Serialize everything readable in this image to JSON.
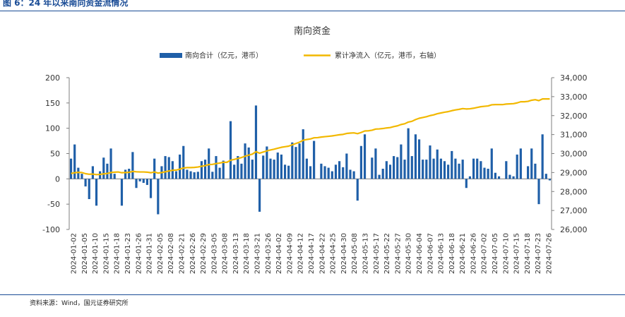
{
  "figure_label": "图 6：24 年以来南向资金流情况",
  "source_note": "资料来源：Wind，国元证券研究所",
  "colors": {
    "bar": "#1f5fa8",
    "line": "#f2b800",
    "header": "#1a4c96",
    "axis": "#7f7f7f",
    "text": "#333333"
  },
  "chart_data": {
    "type": "bar+line",
    "title": "南向资金",
    "legend": [
      "南向合计（亿元，港币）",
      "累计净流入（亿元，港币，右轴）"
    ],
    "left_axis": {
      "min": -100,
      "max": 200,
      "ticks": [
        "200",
        "150",
        "100",
        "50",
        "0",
        "-50",
        "-100"
      ]
    },
    "right_axis": {
      "min": 26000,
      "max": 34000,
      "ticks": [
        "34,000",
        "33,000",
        "32,000",
        "31,000",
        "30,000",
        "29,000",
        "28,000",
        "27,000",
        "26,000"
      ]
    },
    "x_ticks": [
      "2024-01-02",
      "2024-01-05",
      "2024-01-10",
      "2024-01-15",
      "2024-01-18",
      "2024-01-23",
      "2024-01-26",
      "2024-01-31",
      "2024-02-05",
      "2024-02-08",
      "2024-02-21",
      "2024-02-26",
      "2024-02-29",
      "2024-03-05",
      "2024-03-08",
      "2024-03-13",
      "2024-03-18",
      "2024-03-21",
      "2024-03-26",
      "2024-04-02",
      "2024-04-09",
      "2024-04-12",
      "2024-04-17",
      "2024-04-22",
      "2024-04-25",
      "2024-04-30",
      "2024-05-08",
      "2024-05-13",
      "2024-05-17",
      "2024-05-22",
      "2024-05-27",
      "2024-05-30",
      "2024-06-04",
      "2024-06-07",
      "2024-06-13",
      "2024-06-18",
      "2024-06-21",
      "2024-06-26",
      "2024-07-02",
      "2024-07-05",
      "2024-07-10",
      "2024-07-15",
      "2024-07-18",
      "2024-07-23",
      "2024-07-26"
    ],
    "series": [
      {
        "name": "南向合计（亿元，港币）",
        "type": "bar",
        "values": [
          40,
          68,
          22,
          10,
          -15,
          -40,
          25,
          -53,
          15,
          42,
          30,
          60,
          10,
          0,
          -53,
          18,
          20,
          53,
          -18,
          -5,
          -8,
          -12,
          -38,
          40,
          -70,
          25,
          45,
          43,
          35,
          15,
          48,
          65,
          18,
          15,
          13,
          14,
          35,
          38,
          60,
          14,
          45,
          22,
          36,
          0,
          114,
          28,
          45,
          30,
          70,
          62,
          38,
          145,
          -65,
          46,
          64,
          40,
          38,
          52,
          48,
          28,
          26,
          72,
          63,
          70,
          98,
          40,
          25,
          75,
          0,
          30,
          25,
          22,
          15,
          28,
          35,
          23,
          50,
          18,
          15,
          -43,
          65,
          88,
          0,
          42,
          60,
          8,
          20,
          35,
          28,
          45,
          43,
          68,
          38,
          100,
          45,
          88,
          78,
          38,
          38,
          66,
          40,
          58,
          40,
          35,
          28,
          55,
          40,
          30,
          38,
          -18,
          5,
          40,
          40,
          35,
          22,
          20,
          60,
          12,
          5,
          0,
          35,
          8,
          5,
          48,
          60,
          0,
          25,
          60,
          30,
          -50,
          88,
          10,
          -3
        ],
        "dates": [
          "2024-01-02",
          "2024-01-03",
          "2024-01-04",
          "2024-01-05",
          "2024-01-08",
          "2024-01-09",
          "2024-01-10",
          "2024-01-11",
          "2024-01-12",
          "2024-01-15",
          "2024-01-16",
          "2024-01-17",
          "2024-01-18",
          "2024-01-19",
          "2024-01-22",
          "2024-01-23",
          "2024-01-24",
          "2024-01-25",
          "2024-01-26",
          "2024-01-29",
          "2024-01-30",
          "2024-01-31",
          "2024-02-01",
          "2024-02-02",
          "2024-02-05",
          "2024-02-06",
          "2024-02-07",
          "2024-02-08",
          "2024-02-19",
          "2024-02-20",
          "2024-02-21",
          "2024-02-22",
          "2024-02-23",
          "2024-02-26",
          "2024-02-27",
          "2024-02-28",
          "2024-02-29",
          "2024-03-01",
          "2024-03-04",
          "2024-03-05",
          "2024-03-06",
          "2024-03-07",
          "2024-03-08",
          "2024-03-11",
          "2024-03-12",
          "2024-03-13",
          "2024-03-14",
          "2024-03-15",
          "2024-03-18",
          "2024-03-19",
          "2024-03-20",
          "2024-03-21",
          "2024-03-22",
          "2024-03-25",
          "2024-03-26",
          "2024-03-27",
          "2024-03-28",
          "2024-04-02",
          "2024-04-03",
          "2024-04-08",
          "2024-04-09",
          "2024-04-10",
          "2024-04-11",
          "2024-04-12",
          "2024-04-15",
          "2024-04-16",
          "2024-04-17",
          "2024-04-18",
          "2024-04-19",
          "2024-04-22",
          "2024-04-23",
          "2024-04-24",
          "2024-04-25",
          "2024-04-26",
          "2024-04-29",
          "2024-04-30",
          "2024-05-02",
          "2024-05-03",
          "2024-05-06",
          "2024-05-07",
          "2024-05-08",
          "2024-05-09",
          "2024-05-10",
          "2024-05-13",
          "2024-05-14",
          "2024-05-16",
          "2024-05-17",
          "2024-05-20",
          "2024-05-21",
          "2024-05-22",
          "2024-05-23",
          "2024-05-24",
          "2024-05-27",
          "2024-05-28",
          "2024-05-29",
          "2024-05-30",
          "2024-05-31",
          "2024-06-03",
          "2024-06-04",
          "2024-06-05",
          "2024-06-06",
          "2024-06-07",
          "2024-06-11",
          "2024-06-12",
          "2024-06-13",
          "2024-06-14",
          "2024-06-17",
          "2024-06-18",
          "2024-06-19",
          "2024-06-20",
          "2024-06-21",
          "2024-06-24",
          "2024-06-25",
          "2024-06-26",
          "2024-06-27",
          "2024-06-28",
          "2024-07-02",
          "2024-07-03",
          "2024-07-04",
          "2024-07-05",
          "2024-07-08",
          "2024-07-09",
          "2024-07-10",
          "2024-07-11",
          "2024-07-12",
          "2024-07-15",
          "2024-07-16",
          "2024-07-17",
          "2024-07-18",
          "2024-07-19",
          "2024-07-22",
          "2024-07-23",
          "2024-07-24"
        ]
      },
      {
        "name": "累计净流入（亿元，港币，右轴）",
        "type": "line",
        "axis": "right",
        "values": [
          28950,
          28990,
          29010,
          29000,
          28940,
          28910,
          28920,
          28890,
          28900,
          28930,
          28950,
          29000,
          29020,
          29030,
          28990,
          29000,
          29010,
          29060,
          29040,
          29030,
          29030,
          29020,
          28990,
          29030,
          28970,
          29000,
          29040,
          29080,
          29120,
          29130,
          29180,
          29240,
          29260,
          29260,
          29270,
          29290,
          29330,
          29360,
          29420,
          29430,
          29470,
          29500,
          29540,
          29540,
          29650,
          29690,
          29740,
          29790,
          29860,
          29920,
          29970,
          30100,
          30020,
          30080,
          30140,
          30190,
          30230,
          30280,
          30330,
          30360,
          30390,
          30460,
          30530,
          30600,
          30700,
          30740,
          30770,
          30830,
          30840,
          30870,
          30890,
          30910,
          30930,
          30960,
          30990,
          31010,
          31060,
          31080,
          31090,
          31050,
          31110,
          31190,
          31200,
          31230,
          31290,
          31300,
          31320,
          31350,
          31370,
          31420,
          31460,
          31530,
          31570,
          31660,
          31700,
          31790,
          31860,
          31900,
          31940,
          32000,
          32040,
          32100,
          32140,
          32180,
          32210,
          32260,
          32300,
          32330,
          32370,
          32350,
          32360,
          32390,
          32430,
          32470,
          32490,
          32510,
          32570,
          32580,
          32580,
          32580,
          32610,
          32620,
          32630,
          32670,
          32730,
          32730,
          32750,
          32810,
          32840,
          32790,
          32880,
          32880,
          32880
        ]
      }
    ]
  }
}
